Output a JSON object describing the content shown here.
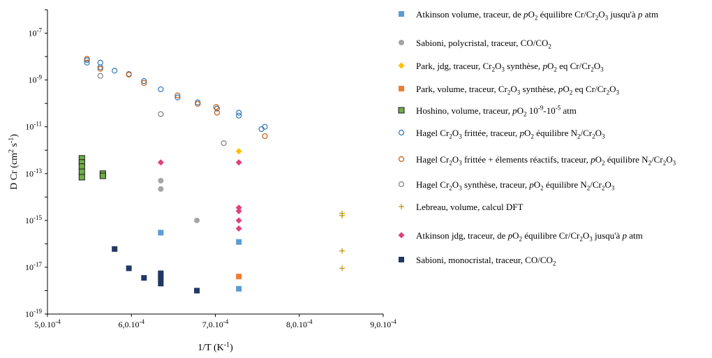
{
  "chart_data": {
    "type": "scatter",
    "xlabel": "1/T (K⁻¹)",
    "ylabel": "D Cr (cm² s⁻¹)",
    "xlim": [
      0.0005,
      0.0009
    ],
    "ylim": [
      1e-19,
      1e-06
    ],
    "y_scale": "log",
    "grid": false,
    "legend_position": "right",
    "x_ticks": [
      {
        "value": 0.0005,
        "label": "5,0.10-4"
      },
      {
        "value": 0.0006,
        "label": "6,0.10-4"
      },
      {
        "value": 0.0007,
        "label": "7,0.10-4"
      },
      {
        "value": 0.0008,
        "label": "8,0.10-4"
      },
      {
        "value": 0.0009,
        "label": "9,0.10-4"
      }
    ],
    "y_ticks": [
      {
        "value": 1e-19,
        "label": "10-19"
      },
      {
        "value": 1e-17,
        "label": "10-17"
      },
      {
        "value": 1e-15,
        "label": "10-15"
      },
      {
        "value": 1e-13,
        "label": "10-13"
      },
      {
        "value": 1e-11,
        "label": "10-11"
      },
      {
        "value": 1e-09,
        "label": "10-9"
      },
      {
        "value": 1e-07,
        "label": "10-7"
      }
    ],
    "series": [
      {
        "name": "Atkinson volume, traceur, de pO2 équilibre Cr/Cr2O3 jusqu'à p atm",
        "marker": "square",
        "color": "#5b9bd5",
        "points": [
          [
            0.000635,
            3e-16
          ],
          [
            0.000728,
            1.2e-16
          ],
          [
            0.000728,
            1.2e-18
          ]
        ]
      },
      {
        "name": "Sabioni, polycristal, traceur,  CO/CO2",
        "marker": "circle",
        "color": "#a5a5a5",
        "points": [
          [
            0.000635,
            5e-14
          ],
          [
            0.000635,
            2.2e-14
          ],
          [
            0.000678,
            1e-15
          ]
        ]
      },
      {
        "name": "Park, jdg, traceur, Cr2O3 synthèse, pO2 eq Cr/Cr2O3",
        "marker": "diamond",
        "color": "#ffc000",
        "points": [
          [
            0.000728,
            9e-13
          ]
        ]
      },
      {
        "name": "Park, volume, traceur, Cr2O3 synthèse, pO2 eq Cr/Cr2O3",
        "marker": "square",
        "color": "#ed7d31",
        "points": [
          [
            0.000728,
            4e-18
          ]
        ]
      },
      {
        "name": "Hoshino, volume, traceur, pO2 10-9-10-5 atm",
        "marker": "square-outline",
        "color": "#70ad47",
        "points": [
          [
            0.000541,
            4.5e-13
          ],
          [
            0.000541,
            3e-13
          ],
          [
            0.000541,
            2e-13
          ],
          [
            0.000541,
            1.2e-13
          ],
          [
            0.000541,
            7e-14
          ],
          [
            0.000566,
            1e-13
          ],
          [
            0.000566,
            8e-14
          ]
        ]
      },
      {
        "name": "Hagel Cr2O3 frittée, traceur, pO2 équilibre N2/Cr2O3",
        "marker": "circle-open",
        "color": "#2e75b6",
        "points": [
          [
            0.000547,
            7e-09
          ],
          [
            0.000547,
            5.5e-09
          ],
          [
            0.000563,
            5.5e-09
          ],
          [
            0.000563,
            3.5e-09
          ],
          [
            0.00058,
            2.5e-09
          ],
          [
            0.000597,
            1.8e-09
          ],
          [
            0.000615,
            9e-10
          ],
          [
            0.000635,
            4e-10
          ],
          [
            0.000655,
            1.8e-10
          ],
          [
            0.000679,
            1.1e-10
          ],
          [
            0.000702,
            6e-11
          ],
          [
            0.000728,
            4e-11
          ],
          [
            0.000728,
            3e-11
          ],
          [
            0.000755,
            8e-12
          ],
          [
            0.000759,
            1e-11
          ]
        ]
      },
      {
        "name": "Hagel Cr2O3 frittée + élements réactifs, traceur, pO2 équilibre N2/Cr2O3",
        "marker": "circle-open",
        "color": "#c55a11",
        "points": [
          [
            0.000547,
            8e-09
          ],
          [
            0.000563,
            3e-09
          ],
          [
            0.000597,
            1.7e-09
          ],
          [
            0.000615,
            7.5e-10
          ],
          [
            0.000655,
            2.2e-10
          ],
          [
            0.000679,
            9.5e-11
          ],
          [
            0.000701,
            7e-11
          ],
          [
            0.000702,
            4e-11
          ],
          [
            0.000759,
            4e-12
          ]
        ]
      },
      {
        "name": "Hagel Cr2O3 synthèse, traceur, pO2 équilibre N2/Cr2O3",
        "marker": "circle-open",
        "color": "#7f7f7f",
        "points": [
          [
            0.000563,
            1.5e-09
          ],
          [
            0.000635,
            3.5e-11
          ],
          [
            0.00071,
            2e-12
          ]
        ]
      },
      {
        "name": "Lebreau, volume, calcul DFT",
        "marker": "plus",
        "color": "#bf9000",
        "points": [
          [
            0.000851,
            2e-15
          ],
          [
            0.000851,
            1.6e-15
          ],
          [
            0.000851,
            5e-17
          ],
          [
            0.000851,
            9e-18
          ]
        ]
      },
      {
        "name": "Atkinson jdg, traceur, de pO2 équilibre Cr/Cr2O3 jusqu'à p atm",
        "marker": "diamond",
        "color": "#e0407e",
        "points": [
          [
            0.000635,
            3e-13
          ],
          [
            0.000728,
            3e-13
          ],
          [
            0.000728,
            3.5e-15
          ],
          [
            0.000728,
            2.5e-15
          ],
          [
            0.000728,
            1e-15
          ],
          [
            0.000728,
            4.5e-16
          ]
        ]
      },
      {
        "name": "Sabioni, monocristal, traceur,  CO/CO2",
        "marker": "square",
        "color": "#203864",
        "points": [
          [
            0.00058,
            6e-17
          ],
          [
            0.000597,
            9e-18
          ],
          [
            0.000615,
            3.5e-18
          ],
          [
            0.000635,
            5.5e-18
          ],
          [
            0.000635,
            4e-18
          ],
          [
            0.000635,
            3e-18
          ],
          [
            0.000635,
            2e-18
          ],
          [
            0.000678,
            1e-18
          ]
        ]
      }
    ],
    "legend": [
      {
        "parts": [
          [
            "Atkinson volume, traceur, de ",
            ""
          ],
          [
            "p",
            "i"
          ],
          [
            "O",
            ""
          ],
          [
            "2",
            "sub"
          ],
          [
            " équilibre Cr/Cr",
            ""
          ],
          [
            "2",
            "sub"
          ],
          [
            "O",
            ""
          ],
          [
            "3",
            "sub"
          ],
          [
            " jusqu'à ",
            ""
          ],
          [
            "p",
            "i"
          ],
          [
            " atm",
            ""
          ]
        ]
      },
      {
        "parts": [
          [
            "Sabioni, polycristal, traceur,  CO/CO",
            ""
          ],
          [
            "2",
            "sub"
          ]
        ]
      },
      {
        "parts": [
          [
            "Park, jdg, traceur, Cr",
            ""
          ],
          [
            "2",
            "sub"
          ],
          [
            "O",
            ""
          ],
          [
            "3",
            "sub"
          ],
          [
            " synthèse, ",
            ""
          ],
          [
            "p",
            "i"
          ],
          [
            "O",
            ""
          ],
          [
            "2",
            "sub"
          ],
          [
            " eq Cr/Cr",
            ""
          ],
          [
            "2",
            "sub"
          ],
          [
            "O",
            ""
          ],
          [
            "3",
            "sub"
          ]
        ]
      },
      {
        "parts": [
          [
            "Park, volume, traceur, Cr",
            ""
          ],
          [
            "2",
            "sub"
          ],
          [
            "O",
            ""
          ],
          [
            "3",
            "sub"
          ],
          [
            " synthèse, ",
            ""
          ],
          [
            "p",
            "i"
          ],
          [
            "O",
            ""
          ],
          [
            "2",
            "sub"
          ],
          [
            " eq Cr/Cr",
            ""
          ],
          [
            "2",
            "sub"
          ],
          [
            "O",
            ""
          ],
          [
            "3",
            "sub"
          ]
        ]
      },
      {
        "parts": [
          [
            "Hoshino, volume, traceur, ",
            ""
          ],
          [
            "p",
            "i"
          ],
          [
            "O",
            ""
          ],
          [
            "2",
            "sub"
          ],
          [
            " 10",
            ""
          ],
          [
            "-9",
            "sup"
          ],
          [
            "-10",
            ""
          ],
          [
            "-5",
            "sup"
          ],
          [
            " atm",
            ""
          ]
        ]
      },
      {
        "parts": [
          [
            "Hagel Cr",
            ""
          ],
          [
            "2",
            "sub"
          ],
          [
            "O",
            ""
          ],
          [
            "3",
            "sub"
          ],
          [
            " frittée, traceur, ",
            ""
          ],
          [
            "p",
            "i"
          ],
          [
            "O",
            ""
          ],
          [
            "2",
            "sub"
          ],
          [
            " équilibre N",
            ""
          ],
          [
            "2",
            "sub"
          ],
          [
            "/Cr",
            ""
          ],
          [
            "2",
            "sub"
          ],
          [
            "O",
            ""
          ],
          [
            "3",
            "sub"
          ]
        ]
      },
      {
        "parts": [
          [
            "Hagel Cr",
            ""
          ],
          [
            "2",
            "sub"
          ],
          [
            "O",
            ""
          ],
          [
            "3",
            "sub"
          ],
          [
            " frittée + élements réactifs, traceur, ",
            ""
          ],
          [
            "p",
            "i"
          ],
          [
            "O",
            ""
          ],
          [
            "2",
            "sub"
          ],
          [
            " équilibre N",
            ""
          ],
          [
            "2",
            "sub"
          ],
          [
            "/Cr",
            ""
          ],
          [
            "2",
            "sub"
          ],
          [
            "O",
            ""
          ],
          [
            "3",
            "sub"
          ]
        ]
      },
      {
        "parts": [
          [
            "Hagel Cr",
            ""
          ],
          [
            "2",
            "sub"
          ],
          [
            "O",
            ""
          ],
          [
            "3",
            "sub"
          ],
          [
            " synthèse, traceur, ",
            ""
          ],
          [
            "p",
            "i"
          ],
          [
            "O",
            ""
          ],
          [
            "2",
            "sub"
          ],
          [
            " équilibre N",
            ""
          ],
          [
            "2",
            "sub"
          ],
          [
            "/Cr",
            ""
          ],
          [
            "2",
            "sub"
          ],
          [
            "O",
            ""
          ],
          [
            "3",
            "sub"
          ]
        ]
      },
      {
        "parts": [
          [
            "Lebreau, volume, calcul DFT",
            ""
          ]
        ]
      },
      {
        "parts": [
          [
            "Atkinson jdg, traceur, de ",
            ""
          ],
          [
            "p",
            "i"
          ],
          [
            "O",
            ""
          ],
          [
            "2",
            "sub"
          ],
          [
            " équilibre Cr/Cr",
            ""
          ],
          [
            "2",
            "sub"
          ],
          [
            "O",
            ""
          ],
          [
            "3",
            "sub"
          ],
          [
            " jusqu'à ",
            ""
          ],
          [
            "p",
            "i"
          ],
          [
            " atm",
            ""
          ]
        ]
      },
      {
        "parts": [
          [
            "Sabioni, monocristal, traceur,  CO/CO",
            ""
          ],
          [
            "2",
            "sub"
          ]
        ]
      }
    ]
  }
}
